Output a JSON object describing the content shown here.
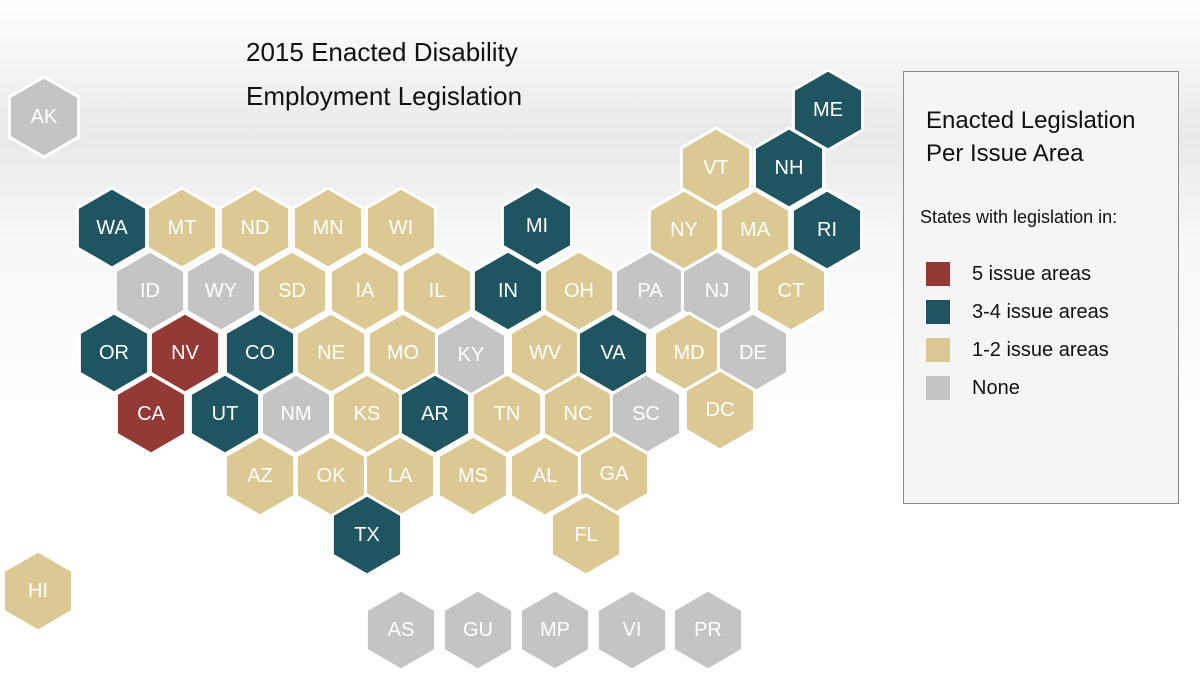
{
  "title": {
    "line1": "2015 Enacted Disability",
    "line2": "Employment Legislation"
  },
  "legend": {
    "title_line1": "Enacted Legislation",
    "title_line2": "Per Issue Area",
    "subtitle": "States with legislation in:",
    "items": [
      {
        "key": "five",
        "label": "5 issue areas",
        "color": "#933a36"
      },
      {
        "key": "three_four",
        "label": "3-4 issue areas",
        "color": "#1f5461"
      },
      {
        "key": "one_two",
        "label": "1-2 issue areas",
        "color": "#dbc893"
      },
      {
        "key": "none",
        "label": "None",
        "color": "#c4c4c4"
      }
    ]
  },
  "states": [
    {
      "code": "AK",
      "category": "none"
    },
    {
      "code": "ME",
      "category": "three_four"
    },
    {
      "code": "VT",
      "category": "one_two"
    },
    {
      "code": "NH",
      "category": "three_four"
    },
    {
      "code": "WA",
      "category": "three_four"
    },
    {
      "code": "MT",
      "category": "one_two"
    },
    {
      "code": "ND",
      "category": "one_two"
    },
    {
      "code": "MN",
      "category": "one_two"
    },
    {
      "code": "WI",
      "category": "one_two"
    },
    {
      "code": "MI",
      "category": "three_four"
    },
    {
      "code": "NY",
      "category": "one_two"
    },
    {
      "code": "MA",
      "category": "one_two"
    },
    {
      "code": "RI",
      "category": "three_four"
    },
    {
      "code": "ID",
      "category": "none"
    },
    {
      "code": "WY",
      "category": "none"
    },
    {
      "code": "SD",
      "category": "one_two"
    },
    {
      "code": "IA",
      "category": "one_two"
    },
    {
      "code": "IL",
      "category": "one_two"
    },
    {
      "code": "IN",
      "category": "three_four"
    },
    {
      "code": "OH",
      "category": "one_two"
    },
    {
      "code": "PA",
      "category": "none"
    },
    {
      "code": "NJ",
      "category": "none"
    },
    {
      "code": "CT",
      "category": "one_two"
    },
    {
      "code": "OR",
      "category": "three_four"
    },
    {
      "code": "NV",
      "category": "five"
    },
    {
      "code": "CO",
      "category": "three_four"
    },
    {
      "code": "NE",
      "category": "one_two"
    },
    {
      "code": "MO",
      "category": "one_two"
    },
    {
      "code": "KY",
      "category": "none"
    },
    {
      "code": "WV",
      "category": "one_two"
    },
    {
      "code": "VA",
      "category": "three_four"
    },
    {
      "code": "MD",
      "category": "one_two"
    },
    {
      "code": "DE",
      "category": "none"
    },
    {
      "code": "CA",
      "category": "five"
    },
    {
      "code": "UT",
      "category": "three_four"
    },
    {
      "code": "NM",
      "category": "none"
    },
    {
      "code": "KS",
      "category": "one_two"
    },
    {
      "code": "AR",
      "category": "three_four"
    },
    {
      "code": "TN",
      "category": "one_two"
    },
    {
      "code": "NC",
      "category": "one_two"
    },
    {
      "code": "SC",
      "category": "none"
    },
    {
      "code": "DC",
      "category": "one_two"
    },
    {
      "code": "AZ",
      "category": "one_two"
    },
    {
      "code": "OK",
      "category": "one_two"
    },
    {
      "code": "LA",
      "category": "one_two"
    },
    {
      "code": "MS",
      "category": "one_two"
    },
    {
      "code": "AL",
      "category": "one_two"
    },
    {
      "code": "GA",
      "category": "one_two"
    },
    {
      "code": "TX",
      "category": "three_four"
    },
    {
      "code": "FL",
      "category": "one_two"
    },
    {
      "code": "HI",
      "category": "one_two"
    },
    {
      "code": "AS",
      "category": "none"
    },
    {
      "code": "GU",
      "category": "none"
    },
    {
      "code": "MP",
      "category": "none"
    },
    {
      "code": "VI",
      "category": "none"
    },
    {
      "code": "PR",
      "category": "none"
    }
  ]
}
